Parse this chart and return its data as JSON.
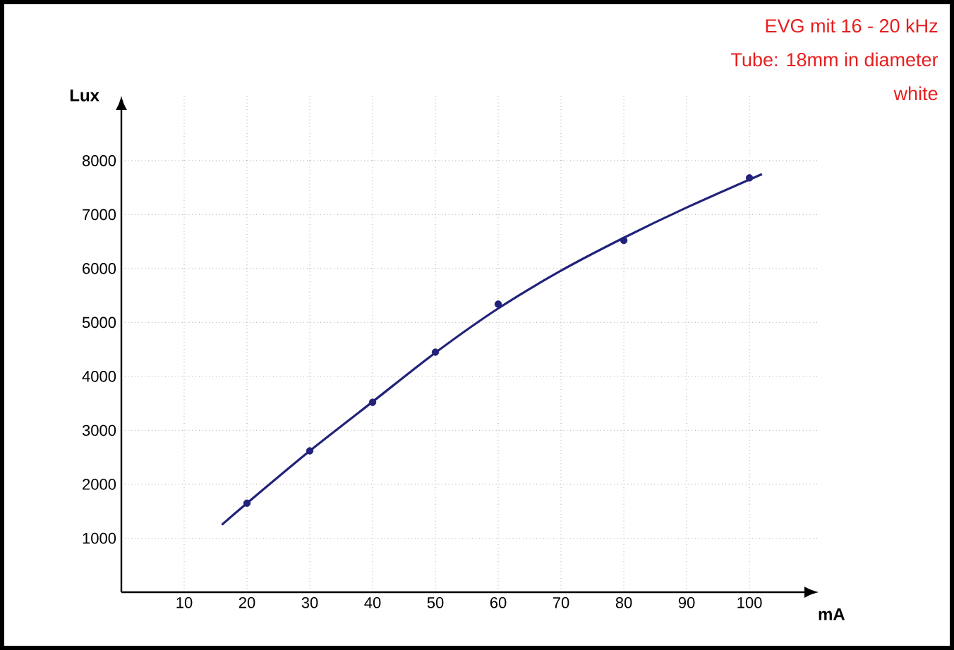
{
  "chart_data": {
    "type": "line",
    "annotations": [
      "EVG mit 16 - 20 kHz",
      "Tube: 18mm in diameter",
      "white"
    ],
    "xlabel": "mA",
    "ylabel": "Lux",
    "series": [
      {
        "type": "scatter",
        "color": "#22227a",
        "marker": "circle",
        "x": [
          20,
          30,
          40,
          50,
          60,
          80,
          100
        ],
        "values": [
          1650,
          2620,
          3520,
          4450,
          5340,
          6520,
          7680
        ]
      },
      {
        "color": "#22227a",
        "marker": "none",
        "x": [
          16,
          20,
          30,
          40,
          50,
          60,
          70,
          80,
          90,
          102
        ],
        "values": [
          1250,
          1650,
          2620,
          3530,
          4440,
          5260,
          5960,
          6570,
          7130,
          7750
        ]
      }
    ],
    "xlim": [
      0,
      111
    ],
    "ylim": [
      0,
      9200
    ],
    "xticks": [
      10,
      20,
      30,
      40,
      50,
      60,
      70,
      80,
      90,
      100
    ],
    "yticks": [
      1000,
      2000,
      3000,
      4000,
      5000,
      6000,
      7000,
      8000
    ],
    "grid": true
  }
}
